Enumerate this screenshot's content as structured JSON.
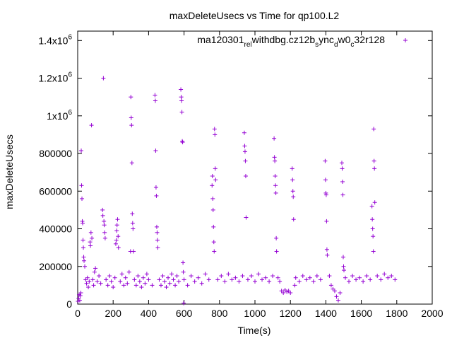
{
  "chart_data": {
    "type": "scatter",
    "title": "maxDeleteUsecs vs Time for qp100.L2",
    "xlabel": "Time(s)",
    "ylabel": "maxDeleteUsecs",
    "xlim": [
      0,
      2000
    ],
    "ylim": [
      0,
      1450000
    ],
    "x_ticks": [
      0,
      200,
      400,
      600,
      800,
      1000,
      1200,
      1400,
      1600,
      1800,
      2000
    ],
    "x_tick_labels": [
      "0",
      "200",
      "400",
      "600",
      "800",
      "1000",
      "1200",
      "1400",
      "1600",
      "1800",
      "2000"
    ],
    "y_ticks": [
      0,
      200000,
      400000,
      600000,
      800000,
      1000000,
      1200000,
      1400000
    ],
    "y_tick_labels": [
      {
        "base": "0",
        "sup": ""
      },
      {
        "base": "200000",
        "sup": ""
      },
      {
        "base": "400000",
        "sup": ""
      },
      {
        "base": "600000",
        "sup": ""
      },
      {
        "base": "800000",
        "sup": ""
      },
      {
        "base": "1x10",
        "sup": "6"
      },
      {
        "base": "1.2x10",
        "sup": "6"
      },
      {
        "base": "1.4x10",
        "sup": "6"
      }
    ],
    "legend_position": "top-right",
    "grid": false,
    "color": "#9400d3",
    "series": [
      {
        "name": "ma120301_rel_withdbg.cz12b_sync_dw0_c32r128",
        "name_segments": [
          {
            "text": "ma120301",
            "sub": false
          },
          {
            "text": "rel",
            "sub": true
          },
          {
            "text": "w",
            "sub": false
          },
          {
            "text": "ithdbg.cz12b",
            "sub": false
          },
          {
            "text": "s",
            "sub": true
          },
          {
            "text": "ync",
            "sub": false
          },
          {
            "text": "d",
            "sub": true
          },
          {
            "text": "w0",
            "sub": false
          },
          {
            "text": "c",
            "sub": true
          },
          {
            "text": "32r128",
            "sub": false
          }
        ],
        "points": [
          [
            2,
            15000
          ],
          [
            5,
            30000
          ],
          [
            8,
            50000
          ],
          [
            12,
            20000
          ],
          [
            15,
            45000
          ],
          [
            18,
            60000
          ],
          [
            20,
            815000
          ],
          [
            22,
            630000
          ],
          [
            24,
            560000
          ],
          [
            26,
            440000
          ],
          [
            28,
            430000
          ],
          [
            30,
            340000
          ],
          [
            32,
            300000
          ],
          [
            34,
            250000
          ],
          [
            36,
            230000
          ],
          [
            40,
            200000
          ],
          [
            45,
            130000
          ],
          [
            50,
            110000
          ],
          [
            55,
            140000
          ],
          [
            60,
            90000
          ],
          [
            65,
            120000
          ],
          [
            70,
            330000
          ],
          [
            72,
            310000
          ],
          [
            75,
            380000
          ],
          [
            78,
            950000
          ],
          [
            80,
            350000
          ],
          [
            85,
            130000
          ],
          [
            90,
            100000
          ],
          [
            95,
            170000
          ],
          [
            100,
            190000
          ],
          [
            110,
            120000
          ],
          [
            120,
            150000
          ],
          [
            130,
            110000
          ],
          [
            140,
            500000
          ],
          [
            142,
            470000
          ],
          [
            145,
            1200000
          ],
          [
            148,
            440000
          ],
          [
            150,
            420000
          ],
          [
            152,
            380000
          ],
          [
            155,
            350000
          ],
          [
            160,
            130000
          ],
          [
            170,
            100000
          ],
          [
            180,
            150000
          ],
          [
            190,
            120000
          ],
          [
            200,
            90000
          ],
          [
            210,
            140000
          ],
          [
            215,
            320000
          ],
          [
            218,
            340000
          ],
          [
            220,
            390000
          ],
          [
            222,
            420000
          ],
          [
            225,
            450000
          ],
          [
            228,
            360000
          ],
          [
            230,
            300000
          ],
          [
            240,
            120000
          ],
          [
            250,
            160000
          ],
          [
            260,
            100000
          ],
          [
            270,
            140000
          ],
          [
            280,
            110000
          ],
          [
            290,
            170000
          ],
          [
            298,
            280000
          ],
          [
            300,
            1100000
          ],
          [
            302,
            990000
          ],
          [
            304,
            950000
          ],
          [
            306,
            750000
          ],
          [
            308,
            480000
          ],
          [
            310,
            430000
          ],
          [
            312,
            400000
          ],
          [
            315,
            280000
          ],
          [
            320,
            130000
          ],
          [
            330,
            100000
          ],
          [
            340,
            150000
          ],
          [
            350,
            120000
          ],
          [
            360,
            90000
          ],
          [
            370,
            140000
          ],
          [
            380,
            110000
          ],
          [
            390,
            160000
          ],
          [
            400,
            130000
          ],
          [
            420,
            100000
          ],
          [
            436,
            1110000
          ],
          [
            438,
            1080000
          ],
          [
            440,
            815000
          ],
          [
            442,
            620000
          ],
          [
            444,
            575000
          ],
          [
            446,
            410000
          ],
          [
            448,
            380000
          ],
          [
            450,
            340000
          ],
          [
            452,
            300000
          ],
          [
            460,
            130000
          ],
          [
            470,
            100000
          ],
          [
            480,
            150000
          ],
          [
            490,
            120000
          ],
          [
            500,
            90000
          ],
          [
            510,
            140000
          ],
          [
            520,
            110000
          ],
          [
            530,
            160000
          ],
          [
            540,
            130000
          ],
          [
            550,
            100000
          ],
          [
            560,
            150000
          ],
          [
            570,
            120000
          ],
          [
            582,
            1140000
          ],
          [
            584,
            1100000
          ],
          [
            586,
            1080000
          ],
          [
            588,
            1020000
          ],
          [
            590,
            865000
          ],
          [
            592,
            860000
          ],
          [
            594,
            220000
          ],
          [
            596,
            170000
          ],
          [
            598,
            5000
          ],
          [
            600,
            130000
          ],
          [
            620,
            100000
          ],
          [
            640,
            150000
          ],
          [
            660,
            120000
          ],
          [
            680,
            140000
          ],
          [
            700,
            110000
          ],
          [
            720,
            160000
          ],
          [
            740,
            130000
          ],
          [
            758,
            630000
          ],
          [
            760,
            680000
          ],
          [
            762,
            560000
          ],
          [
            764,
            500000
          ],
          [
            766,
            410000
          ],
          [
            768,
            330000
          ],
          [
            770,
            280000
          ],
          [
            772,
            930000
          ],
          [
            774,
            900000
          ],
          [
            776,
            720000
          ],
          [
            778,
            660000
          ],
          [
            790,
            130000
          ],
          [
            810,
            150000
          ],
          [
            830,
            120000
          ],
          [
            850,
            160000
          ],
          [
            870,
            130000
          ],
          [
            890,
            140000
          ],
          [
            910,
            120000
          ],
          [
            930,
            150000
          ],
          [
            940,
            910000
          ],
          [
            942,
            840000
          ],
          [
            944,
            810000
          ],
          [
            946,
            760000
          ],
          [
            948,
            680000
          ],
          [
            950,
            460000
          ],
          [
            960,
            130000
          ],
          [
            980,
            150000
          ],
          [
            1000,
            120000
          ],
          [
            1020,
            160000
          ],
          [
            1040,
            130000
          ],
          [
            1060,
            140000
          ],
          [
            1080,
            120000
          ],
          [
            1100,
            150000
          ],
          [
            1108,
            880000
          ],
          [
            1110,
            780000
          ],
          [
            1112,
            760000
          ],
          [
            1114,
            680000
          ],
          [
            1116,
            630000
          ],
          [
            1118,
            590000
          ],
          [
            1120,
            350000
          ],
          [
            1122,
            280000
          ],
          [
            1130,
            140000
          ],
          [
            1140,
            120000
          ],
          [
            1150,
            70000
          ],
          [
            1160,
            60000
          ],
          [
            1170,
            75000
          ],
          [
            1180,
            65000
          ],
          [
            1190,
            70000
          ],
          [
            1200,
            60000
          ],
          [
            1210,
            720000
          ],
          [
            1212,
            660000
          ],
          [
            1214,
            600000
          ],
          [
            1216,
            570000
          ],
          [
            1218,
            450000
          ],
          [
            1225,
            100000
          ],
          [
            1230,
            140000
          ],
          [
            1250,
            120000
          ],
          [
            1270,
            150000
          ],
          [
            1290,
            130000
          ],
          [
            1310,
            140000
          ],
          [
            1330,
            120000
          ],
          [
            1350,
            150000
          ],
          [
            1370,
            130000
          ],
          [
            1396,
            760000
          ],
          [
            1398,
            660000
          ],
          [
            1400,
            590000
          ],
          [
            1402,
            580000
          ],
          [
            1404,
            440000
          ],
          [
            1406,
            290000
          ],
          [
            1408,
            260000
          ],
          [
            1420,
            150000
          ],
          [
            1430,
            100000
          ],
          [
            1440,
            80000
          ],
          [
            1450,
            70000
          ],
          [
            1460,
            40000
          ],
          [
            1470,
            20000
          ],
          [
            1480,
            60000
          ],
          [
            1490,
            750000
          ],
          [
            1492,
            720000
          ],
          [
            1494,
            650000
          ],
          [
            1496,
            580000
          ],
          [
            1498,
            250000
          ],
          [
            1500,
            200000
          ],
          [
            1502,
            180000
          ],
          [
            1510,
            140000
          ],
          [
            1530,
            120000
          ],
          [
            1550,
            150000
          ],
          [
            1570,
            130000
          ],
          [
            1590,
            140000
          ],
          [
            1610,
            120000
          ],
          [
            1630,
            150000
          ],
          [
            1650,
            130000
          ],
          [
            1660,
            520000
          ],
          [
            1662,
            450000
          ],
          [
            1664,
            400000
          ],
          [
            1666,
            360000
          ],
          [
            1668,
            280000
          ],
          [
            1670,
            930000
          ],
          [
            1672,
            760000
          ],
          [
            1674,
            720000
          ],
          [
            1676,
            540000
          ],
          [
            1690,
            150000
          ],
          [
            1710,
            130000
          ],
          [
            1730,
            160000
          ],
          [
            1750,
            140000
          ],
          [
            1770,
            150000
          ],
          [
            1790,
            130000
          ]
        ]
      }
    ]
  }
}
